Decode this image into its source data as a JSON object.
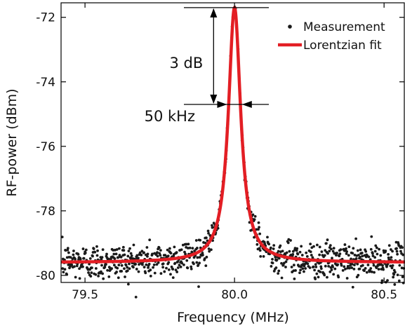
{
  "chart_data": {
    "type": "scatter",
    "xlabel": "Frequency (MHz)",
    "ylabel": "RF-power (dBm)",
    "xlim": [
      79.42,
      80.57
    ],
    "ylim": [
      -80.22,
      -71.55
    ],
    "x_ticks": [
      79.5,
      80.0,
      80.5
    ],
    "x_tick_labels": [
      "79.5",
      "80.0",
      "80.5"
    ],
    "y_ticks": [
      -72,
      -74,
      -76,
      -78,
      -80
    ],
    "y_tick_labels": [
      "-72",
      "-74",
      "-76",
      "-78",
      "-80"
    ],
    "grid": false,
    "legend_position": "top-right",
    "colors": {
      "measurement": "#1a1a1a",
      "fit": "#e31e24",
      "axis": "#000000"
    },
    "series": [
      {
        "name": "Measurement",
        "kind": "scatter",
        "model": {
          "center": 80.0,
          "peak": -71.7,
          "floor": -79.6,
          "fwhm": 0.05
        },
        "noise_floor_dB": 0.28,
        "n_points": 900
      },
      {
        "name": "Lorentzian fit",
        "kind": "line",
        "model": {
          "center": 80.0,
          "peak": -71.7,
          "floor": -79.6,
          "fwhm": 0.05
        }
      }
    ],
    "annotations": [
      {
        "text": "3 dB",
        "type": "vertical-span",
        "x": 79.93,
        "y_top": -71.7,
        "y_bottom": -74.7
      },
      {
        "text": "50 kHz",
        "type": "horizontal-span",
        "y": -74.7,
        "x_left": 79.975,
        "x_right": 80.025
      }
    ]
  }
}
